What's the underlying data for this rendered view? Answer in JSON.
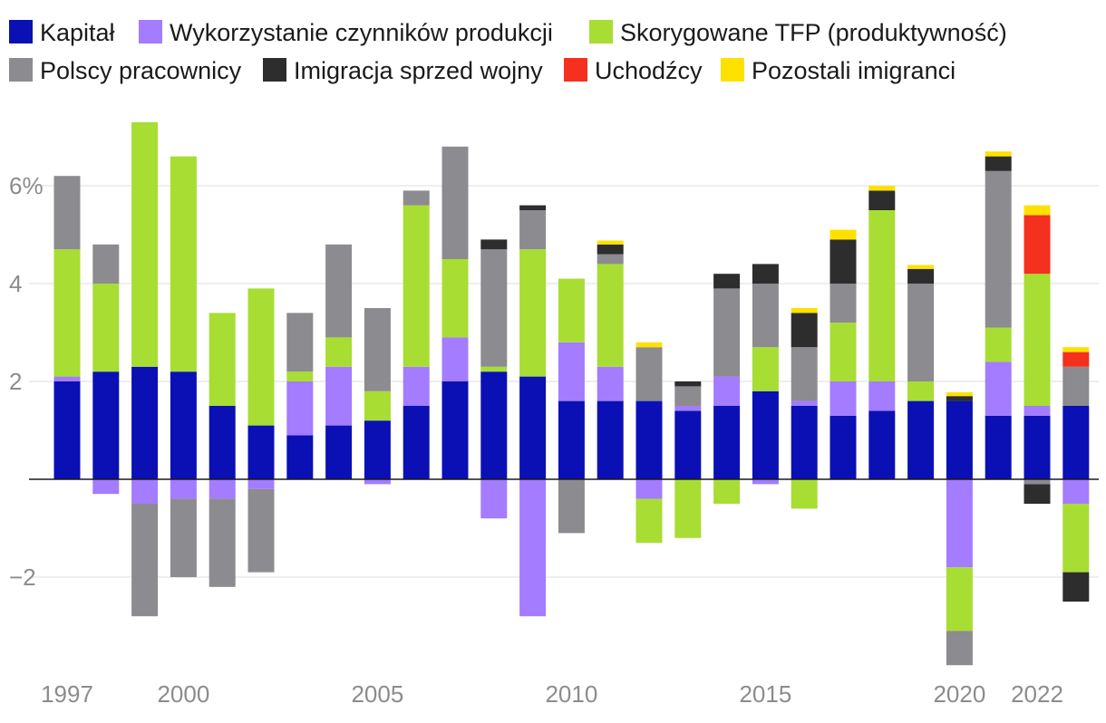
{
  "chart_data": {
    "type": "stacked-bar",
    "ylim": [
      -3.8,
      7.5
    ],
    "y_ticks": [
      {
        "value": -2,
        "label": "−2"
      },
      {
        "value": 2,
        "label": "2"
      },
      {
        "value": 4,
        "label": "4"
      },
      {
        "value": 6,
        "label": "6%"
      }
    ],
    "x_tick_labels": [
      {
        "year": 1997,
        "label": "1997"
      },
      {
        "year": 2000,
        "label": "2000"
      },
      {
        "year": 2005,
        "label": "2005"
      },
      {
        "year": 2010,
        "label": "2010"
      },
      {
        "year": 2015,
        "label": "2015"
      },
      {
        "year": 2020,
        "label": "2020"
      },
      {
        "year": 2022,
        "label": "2022"
      }
    ],
    "categories": [
      1997,
      1998,
      1999,
      2000,
      2001,
      2002,
      2003,
      2004,
      2005,
      2006,
      2007,
      2008,
      2009,
      2010,
      2011,
      2012,
      2013,
      2014,
      2015,
      2016,
      2017,
      2018,
      2019,
      2020,
      2021,
      2022,
      2023
    ],
    "series": [
      {
        "name": "Kapitał",
        "color": "#0a10b4",
        "values": [
          2.0,
          2.2,
          2.3,
          2.2,
          1.5,
          1.1,
          0.9,
          1.1,
          1.2,
          1.5,
          2.0,
          2.2,
          2.1,
          1.6,
          1.6,
          1.6,
          1.4,
          1.5,
          1.8,
          1.5,
          1.3,
          1.4,
          1.6,
          1.6,
          1.3,
          1.3,
          1.5
        ]
      },
      {
        "name": "Wykorzystanie czynników produkcji",
        "color": "#a37cff",
        "values": [
          0.1,
          -0.3,
          -0.5,
          -0.4,
          -0.4,
          -0.2,
          1.1,
          1.2,
          -0.1,
          0.8,
          0.9,
          -0.8,
          -2.8,
          1.2,
          0.7,
          -0.4,
          0.1,
          0.6,
          -0.1,
          0.1,
          0.7,
          0.6,
          0,
          -1.8,
          1.1,
          0.2,
          -0.5
        ]
      },
      {
        "name": "Skorygowane TFP (produktywność)",
        "color": "#a8dd33",
        "values": [
          2.6,
          1.8,
          5.0,
          4.4,
          1.9,
          2.8,
          0.2,
          0.6,
          0.6,
          3.3,
          1.6,
          0.1,
          2.6,
          1.3,
          2.1,
          -0.9,
          -1.2,
          -0.5,
          0.9,
          -0.6,
          1.2,
          3.5,
          0.4,
          -1.3,
          0.7,
          2.7,
          -1.4
        ]
      },
      {
        "name": "Polscy pracownicy",
        "color": "#8c8b8f",
        "values": [
          1.5,
          0.8,
          -2.3,
          -1.6,
          -1.8,
          -1.7,
          1.2,
          1.9,
          1.7,
          0.3,
          2.3,
          2.4,
          0.8,
          -1.1,
          0.2,
          1.1,
          0.4,
          1.8,
          1.3,
          1.1,
          0.8,
          0,
          2.0,
          -0.7,
          3.2,
          -0.1,
          0.8
        ]
      },
      {
        "name": "Imigracja sprzed wojny",
        "color": "#2d2d2d",
        "values": [
          0,
          0,
          0,
          0,
          0,
          0,
          0,
          0,
          0,
          0,
          0,
          0.2,
          0.1,
          0,
          0.2,
          0,
          0.1,
          0.3,
          0.4,
          0.7,
          0.9,
          0.4,
          0.3,
          0.1,
          0.3,
          -0.4,
          -0.6
        ]
      },
      {
        "name": "Uchodźcy",
        "color": "#f5301f",
        "values": [
          0,
          0,
          0,
          0,
          0,
          0,
          0,
          0,
          0,
          0,
          0,
          0,
          0,
          0,
          0,
          0,
          0,
          0,
          0,
          0,
          0,
          0,
          0,
          0,
          0,
          1.2,
          0.3
        ]
      },
      {
        "name": "Pozostali imigranci",
        "color": "#ffe100",
        "values": [
          0,
          0,
          0,
          0,
          0,
          0,
          0,
          0,
          0,
          0,
          0,
          0,
          0,
          0,
          0.08,
          0.1,
          0,
          0,
          0,
          0.1,
          0.2,
          0.1,
          0.08,
          0.08,
          0.1,
          0.2,
          0.1
        ]
      }
    ]
  }
}
